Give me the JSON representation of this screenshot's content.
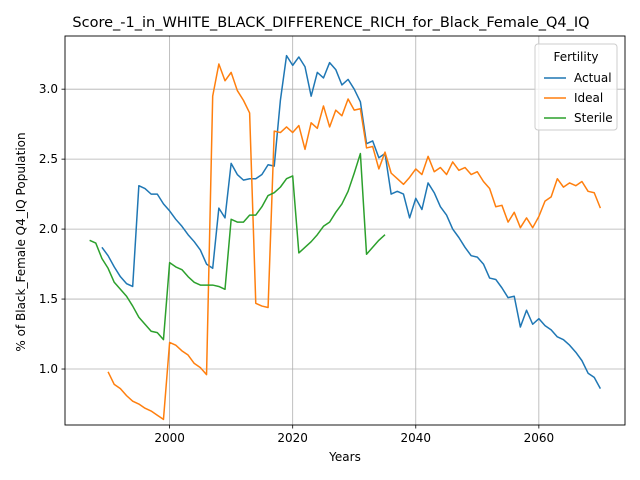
{
  "chart_data": {
    "type": "line",
    "title": "Score_-1_in_WHITE_BLACK_DIFFERENCE_RICH_for_Black_Female_Q4_IQ",
    "xlabel": "Years",
    "ylabel": "% of Black_Female Q4_IQ Population",
    "xlim": [
      1983,
      2074
    ],
    "ylim": [
      0.6,
      3.38
    ],
    "xticks": [
      2000,
      2020,
      2040,
      2060
    ],
    "yticks": [
      1.0,
      1.5,
      2.0,
      2.5,
      3.0
    ],
    "xtick_labels": [
      "2000",
      "2020",
      "2040",
      "2060"
    ],
    "ytick_labels": [
      "1.0",
      "1.5",
      "2.0",
      "2.5",
      "3.0"
    ],
    "grid": true,
    "legend": {
      "title": "Fertility",
      "placement": "top-right"
    },
    "series": [
      {
        "name": "Actual",
        "color": "#1f77b4",
        "x": [
          1989,
          1990,
          1991,
          1992,
          1993,
          1994,
          1995,
          1996,
          1997,
          1998,
          1999,
          2000,
          2001,
          2002,
          2003,
          2004,
          2005,
          2006,
          2007,
          2008,
          2009,
          2010,
          2011,
          2012,
          2013,
          2014,
          2015,
          2016,
          2017,
          2018,
          2019,
          2020,
          2021,
          2022,
          2023,
          2024,
          2025,
          2026,
          2027,
          2028,
          2029,
          2030,
          2031,
          2032,
          2033,
          2034,
          2035,
          2036,
          2037,
          2038,
          2039,
          2040,
          2041,
          2042,
          2043,
          2044,
          2045,
          2046,
          2047,
          2048,
          2049,
          2050,
          2051,
          2052,
          2053,
          2054,
          2055,
          2056,
          2057,
          2058,
          2059,
          2060,
          2061,
          2062,
          2063,
          2064,
          2065,
          2066,
          2067,
          2068,
          2069,
          2070
        ],
        "values": [
          1.87,
          1.81,
          1.73,
          1.66,
          1.61,
          1.59,
          2.31,
          2.29,
          2.25,
          2.25,
          2.18,
          2.13,
          2.07,
          2.02,
          1.96,
          1.91,
          1.85,
          1.75,
          1.72,
          2.15,
          2.08,
          2.47,
          2.39,
          2.35,
          2.36,
          2.36,
          2.39,
          2.46,
          2.45,
          2.92,
          3.24,
          3.17,
          3.23,
          3.16,
          2.95,
          3.12,
          3.08,
          3.19,
          3.14,
          3.03,
          3.07,
          3.0,
          2.91,
          2.61,
          2.63,
          2.51,
          2.54,
          2.25,
          2.27,
          2.25,
          2.08,
          2.22,
          2.14,
          2.33,
          2.26,
          2.16,
          2.1,
          2.0,
          1.94,
          1.87,
          1.81,
          1.8,
          1.75,
          1.65,
          1.64,
          1.58,
          1.51,
          1.52,
          1.3,
          1.42,
          1.32,
          1.36,
          1.31,
          1.28,
          1.23,
          1.21,
          1.17,
          1.12,
          1.06,
          0.97,
          0.94,
          0.86
        ]
      },
      {
        "name": "Ideal",
        "color": "#ff7f0e",
        "x": [
          1990,
          1991,
          1992,
          1993,
          1994,
          1995,
          1996,
          1997,
          1998,
          1999,
          2000,
          2001,
          2002,
          2003,
          2004,
          2005,
          2006,
          2007,
          2008,
          2009,
          2010,
          2011,
          2012,
          2013,
          2014,
          2015,
          2016,
          2017,
          2018,
          2019,
          2020,
          2021,
          2022,
          2023,
          2024,
          2025,
          2026,
          2027,
          2028,
          2029,
          2030,
          2031,
          2032,
          2033,
          2034,
          2035,
          2036,
          2037,
          2038,
          2039,
          2040,
          2041,
          2042,
          2043,
          2044,
          2045,
          2046,
          2047,
          2048,
          2049,
          2050,
          2051,
          2052,
          2053,
          2054,
          2055,
          2056,
          2057,
          2058,
          2059,
          2060,
          2061,
          2062,
          2063,
          2064,
          2065,
          2066,
          2067,
          2068,
          2069,
          2070
        ],
        "values": [
          0.98,
          0.89,
          0.86,
          0.81,
          0.77,
          0.75,
          0.72,
          0.7,
          0.67,
          0.64,
          1.19,
          1.17,
          1.13,
          1.1,
          1.04,
          1.01,
          0.96,
          2.95,
          3.18,
          3.06,
          3.12,
          2.99,
          2.92,
          2.83,
          1.47,
          1.45,
          1.44,
          2.7,
          2.69,
          2.73,
          2.69,
          2.74,
          2.57,
          2.76,
          2.72,
          2.88,
          2.73,
          2.85,
          2.81,
          2.93,
          2.85,
          2.86,
          2.58,
          2.59,
          2.43,
          2.55,
          2.4,
          2.36,
          2.32,
          2.37,
          2.43,
          2.39,
          2.52,
          2.41,
          2.44,
          2.39,
          2.48,
          2.42,
          2.44,
          2.39,
          2.41,
          2.34,
          2.29,
          2.16,
          2.17,
          2.05,
          2.12,
          2.01,
          2.08,
          2.01,
          2.09,
          2.2,
          2.23,
          2.36,
          2.3,
          2.33,
          2.31,
          2.34,
          2.27,
          2.26,
          2.15
        ]
      },
      {
        "name": "Sterile",
        "color": "#2ca02c",
        "x": [
          1987,
          1988,
          1989,
          1990,
          1991,
          1992,
          1993,
          1994,
          1995,
          1996,
          1997,
          1998,
          1999,
          2000,
          2001,
          2002,
          2003,
          2004,
          2005,
          2006,
          2007,
          2008,
          2009,
          2010,
          2011,
          2012,
          2013,
          2014,
          2015,
          2016,
          2017,
          2018,
          2019,
          2020,
          2021,
          2022,
          2023,
          2024,
          2025,
          2026,
          2027,
          2028,
          2029,
          2030,
          2031,
          2032,
          2033,
          2034,
          2035
        ],
        "values": [
          1.92,
          1.9,
          1.79,
          1.72,
          1.62,
          1.57,
          1.52,
          1.45,
          1.37,
          1.32,
          1.27,
          1.26,
          1.21,
          1.76,
          1.73,
          1.71,
          1.66,
          1.62,
          1.6,
          1.6,
          1.6,
          1.59,
          1.57,
          2.07,
          2.05,
          2.05,
          2.1,
          2.1,
          2.16,
          2.24,
          2.26,
          2.3,
          2.36,
          2.38,
          1.83,
          1.87,
          1.91,
          1.96,
          2.02,
          2.05,
          2.12,
          2.18,
          2.27,
          2.4,
          2.54,
          1.82,
          1.87,
          1.92,
          1.96
        ]
      }
    ]
  }
}
